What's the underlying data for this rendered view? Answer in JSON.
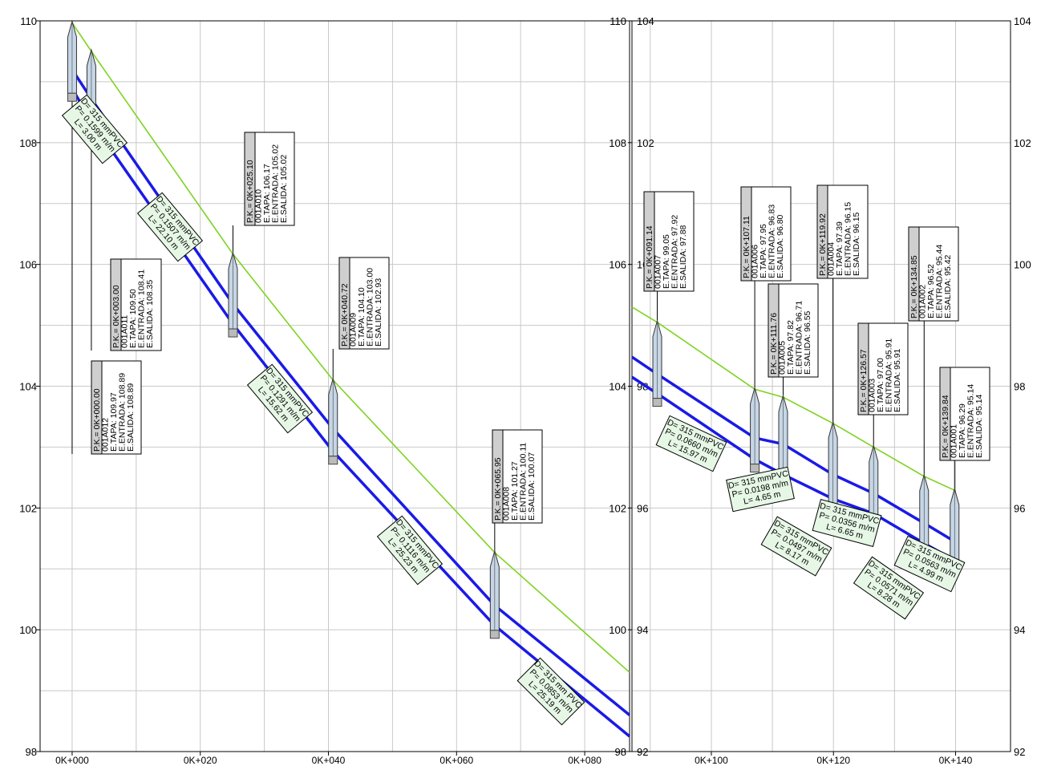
{
  "panels": [
    {
      "id": "left",
      "y_range": [
        98,
        110
      ],
      "y_ticks_left": [
        "98",
        "100",
        "102",
        "104",
        "106",
        "108",
        "110"
      ],
      "y_ticks_right": [
        "98",
        "100",
        "102",
        "104",
        "106",
        "108",
        "110"
      ],
      "x_range": [
        -5,
        87
      ],
      "x_ticks": [
        {
          "value": 0,
          "label": "0K+000"
        },
        {
          "value": 20,
          "label": "0K+020"
        },
        {
          "value": 40,
          "label": "0K+040"
        },
        {
          "value": 60,
          "label": "0K+060"
        },
        {
          "value": 80,
          "label": "0K+080"
        }
      ],
      "ground": [
        [
          0,
          109.97
        ],
        [
          3.0,
          109.5
        ],
        [
          25.1,
          106.17
        ],
        [
          40.72,
          104.1
        ],
        [
          65.95,
          101.27
        ],
        [
          87,
          99.3
        ]
      ],
      "pipe_top": [
        [
          0,
          109.2
        ],
        [
          3.0,
          108.72
        ],
        [
          25.1,
          105.35
        ],
        [
          40.72,
          103.3
        ],
        [
          65.95,
          100.4
        ],
        [
          87,
          98.6
        ]
      ],
      "pipe_bottom": [
        [
          0,
          108.89
        ],
        [
          3.0,
          108.35
        ],
        [
          25.1,
          105.02
        ],
        [
          40.72,
          102.93
        ],
        [
          65.95,
          100.07
        ],
        [
          87,
          98.25
        ]
      ],
      "manholes": [
        {
          "x": 0.0,
          "tapa": 109.97,
          "salida": 108.89,
          "lines": [
            "P.K.= 0K+000.00",
            "001A012",
            "E.TAPA: 109.97",
            "E.ENTRADA: 108.89",
            "E.SALIDA: 108.89"
          ]
        },
        {
          "x": 3.0,
          "tapa": 109.5,
          "salida": 108.35,
          "lines": [
            "P.K.= 0K+003.00",
            "001A011",
            "E.TAPA: 109.50",
            "E.ENTRADA: 108.41",
            "E.SALIDA: 108.35"
          ]
        },
        {
          "x": 25.1,
          "tapa": 106.17,
          "salida": 105.02,
          "lines": [
            "P.K.= 0K+025.10",
            "001A010",
            "E.TAPA: 106.17",
            "E.ENTRADA: 105.02",
            "E.SALIDA: 105.02"
          ]
        },
        {
          "x": 40.72,
          "tapa": 104.1,
          "salida": 102.93,
          "lines": [
            "P.K.= 0K+040.72",
            "001A009",
            "E.TAPA: 104.10",
            "E.ENTRADA: 103.00",
            "E.SALIDA: 102.93"
          ]
        },
        {
          "x": 65.95,
          "tapa": 101.27,
          "salida": 100.07,
          "lines": [
            "P.K.= 0K+065.95",
            "001A008",
            "E.TAPA: 101.27",
            "E.ENTRADA: 100.11",
            "E.SALIDA: 100.07"
          ]
        }
      ],
      "pipe_labels": [
        {
          "lines": [
            "D= 315 mmPVC",
            "P= 0.1599 m/m",
            "L= 3.00 m"
          ]
        },
        {
          "lines": [
            "D= 315 mmPVC",
            "P= 0.1507 m/m",
            "L= 22.10 m"
          ]
        },
        {
          "lines": [
            "D= 315 mmPVC",
            "P= 0.1291 m/m",
            "L= 15.62 m"
          ]
        },
        {
          "lines": [
            "D= 315 mmPVC",
            "P= 0.1116 m/m",
            "L= 25.23 m"
          ]
        },
        {
          "lines": [
            "D= 315 mm PVC",
            "P= 0.0853 m/m",
            "L= 25.19 m"
          ]
        }
      ]
    },
    {
      "id": "right",
      "y_range": [
        92,
        104
      ],
      "y_ticks_left": [
        "92",
        "94",
        "96",
        "98",
        "100",
        "102",
        "104"
      ],
      "y_ticks_right": [
        "92",
        "94",
        "96",
        "98",
        "100",
        "102",
        "104"
      ],
      "x_range": [
        87,
        149
      ],
      "x_ticks": [
        {
          "value": 100,
          "label": "0K+100"
        },
        {
          "value": 120,
          "label": "0K+120"
        },
        {
          "value": 140,
          "label": "0K+140"
        }
      ],
      "ground": [
        [
          87,
          99.3
        ],
        [
          91.14,
          99.05
        ],
        [
          107.11,
          97.95
        ],
        [
          111.76,
          97.82
        ],
        [
          119.92,
          97.39
        ],
        [
          126.57,
          97.0
        ],
        [
          134.85,
          96.52
        ],
        [
          139.84,
          96.29
        ]
      ],
      "pipe_top": [
        [
          87,
          98.48
        ],
        [
          91.14,
          98.2
        ],
        [
          107.11,
          97.15
        ],
        [
          111.76,
          97.05
        ],
        [
          119.92,
          96.55
        ],
        [
          126.57,
          96.24
        ],
        [
          134.85,
          95.75
        ],
        [
          139.84,
          95.45
        ]
      ],
      "pipe_bottom": [
        [
          87,
          98.15
        ],
        [
          91.14,
          97.88
        ],
        [
          107.11,
          96.8
        ],
        [
          111.76,
          96.55
        ],
        [
          119.92,
          96.15
        ],
        [
          126.57,
          95.91
        ],
        [
          134.85,
          95.42
        ],
        [
          139.84,
          95.14
        ]
      ],
      "manholes": [
        {
          "x": 91.14,
          "tapa": 99.05,
          "salida": 97.88,
          "lines": [
            "P.K.= 0K+091.14",
            "001A007",
            "E.TAPA: 99.05",
            "E.ENTRADA: 97.92",
            "E.SALIDA: 97.88"
          ]
        },
        {
          "x": 107.11,
          "tapa": 97.95,
          "salida": 96.8,
          "lines": [
            "P.K.= 0K+107.11",
            "001A006",
            "E.TAPA: 97.95",
            "E.ENTRADA: 96.83",
            "E.SALIDA: 96.80"
          ]
        },
        {
          "x": 111.76,
          "tapa": 97.82,
          "salida": 96.55,
          "lines": [
            "P.K.= 0K+111.76",
            "001A005",
            "E.TAPA: 97.82",
            "E.ENTRADA: 96.71",
            "E.SALIDA: 96.55"
          ]
        },
        {
          "x": 119.92,
          "tapa": 97.39,
          "salida": 96.15,
          "lines": [
            "P.K.= 0K+119.92",
            "001A004",
            "E.TAPA: 97.39",
            "E.ENTRADA: 96.15",
            "E.SALIDA: 96.15"
          ]
        },
        {
          "x": 126.57,
          "tapa": 97.0,
          "salida": 95.91,
          "lines": [
            "P.K.= 0K+126.57",
            "001A003",
            "E.TAPA: 97.00",
            "E.ENTRADA: 95.91",
            "E.SALIDA: 95.91"
          ]
        },
        {
          "x": 134.85,
          "tapa": 96.52,
          "salida": 95.42,
          "lines": [
            "P.K.= 0K+134.85",
            "001A002",
            "E.TAPA: 96.52",
            "E.ENTRADA: 95.44",
            "E.SALIDA: 95.42"
          ]
        },
        {
          "x": 139.84,
          "tapa": 96.29,
          "salida": 95.14,
          "lines": [
            "P.K.= 0K+139.84",
            "001A001",
            "E.TAPA: 96.29",
            "E.ENTRADA: 95.14",
            "E.SALIDA: 95.14"
          ]
        }
      ],
      "pipe_labels": [
        {
          "lines": [
            "D= 315 mmPVC",
            "P= 0.0660 m/m",
            "L= 15.97 m"
          ]
        },
        {
          "lines": [
            "D= 315 mmPVC",
            "P= 0.0198 m/m",
            "L= 4.65 m"
          ]
        },
        {
          "lines": [
            "D= 315 mmPVC",
            "P= 0.0497 m/m",
            "L= 8.17 m"
          ]
        },
        {
          "lines": [
            "D= 315 mmPVC",
            "P= 0.0356 m/m",
            "L= 6.65 m"
          ]
        },
        {
          "lines": [
            "D= 315 mmPVC",
            "P= 0.0571 m/m",
            "L= 8.28 m"
          ]
        },
        {
          "lines": [
            "D= 315 mmPVC",
            "P= 0.0563 m/m",
            "L= 4.99 m"
          ]
        }
      ]
    }
  ],
  "colors": {
    "ground": "#7ed321",
    "pipe": "#1a1ae6",
    "grid": "#c8c8c8",
    "label_fill": "#e6f7e6",
    "header_fill": "#cfcfcf",
    "manhole_fill": "#c6d6e6"
  }
}
